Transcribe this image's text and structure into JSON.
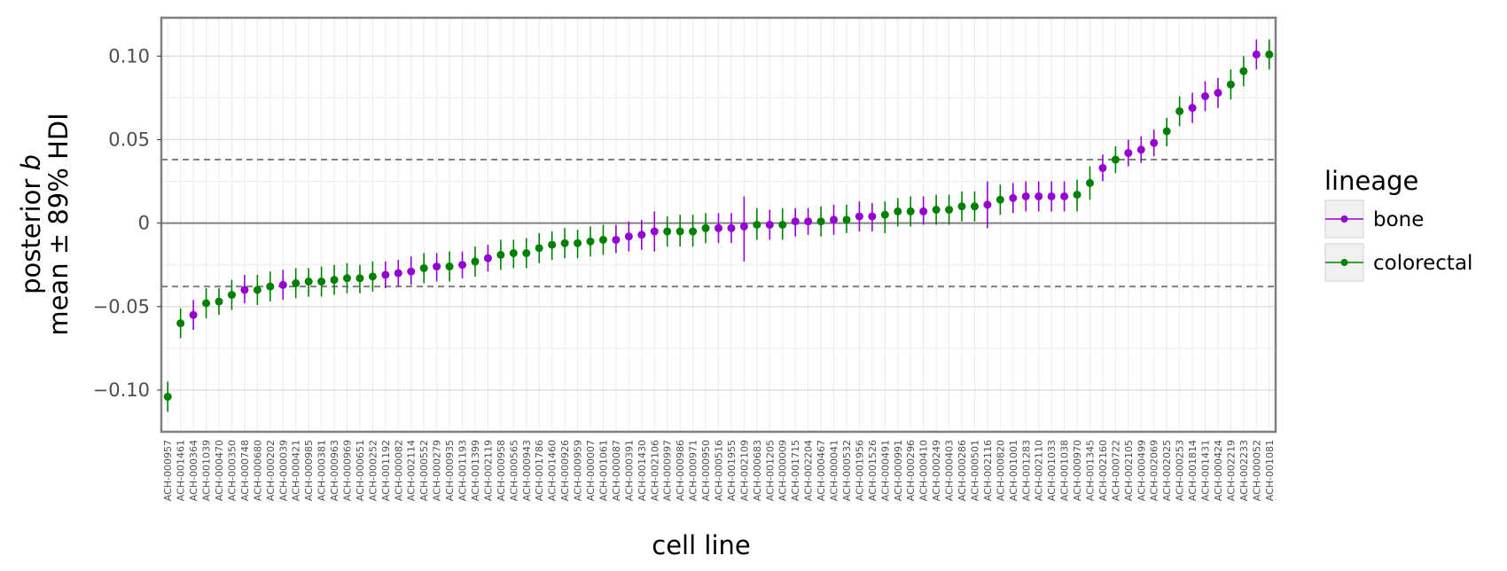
{
  "chart_data": {
    "type": "scatter",
    "title": "",
    "xlabel": "cell line",
    "ylabel_line1": "posterior",
    "ylabel_italic": "b",
    "ylabel_line2": "mean ± 89% HDI",
    "ylim": [
      -0.125,
      0.123
    ],
    "yticks": [
      -0.1,
      -0.05,
      0,
      0.05,
      0.1
    ],
    "ytick_labels": [
      "−0.10",
      "−0.05",
      "0",
      "0.05",
      "0.10"
    ],
    "zero_line": 0,
    "dashed_lines": [
      0.038,
      -0.038
    ],
    "grid": true,
    "legend": {
      "title": "lineage",
      "placement": "right",
      "entries": [
        {
          "name": "bone",
          "color": "#9400d3"
        },
        {
          "name": "colorectal",
          "color": "#008000"
        }
      ]
    },
    "colors": {
      "bone": "#9400d3",
      "colorectal": "#008000"
    },
    "points": [
      {
        "x": "ACH-000957",
        "lineage": "colorectal",
        "y": -0.104,
        "lo": -0.113,
        "hi": -0.095
      },
      {
        "x": "ACH-001461",
        "lineage": "colorectal",
        "y": -0.06,
        "lo": -0.069,
        "hi": -0.051
      },
      {
        "x": "ACH-000364",
        "lineage": "bone",
        "y": -0.055,
        "lo": -0.064,
        "hi": -0.046
      },
      {
        "x": "ACH-001039",
        "lineage": "colorectal",
        "y": -0.048,
        "lo": -0.057,
        "hi": -0.039
      },
      {
        "x": "ACH-000470",
        "lineage": "colorectal",
        "y": -0.047,
        "lo": -0.055,
        "hi": -0.039
      },
      {
        "x": "ACH-000350",
        "lineage": "colorectal",
        "y": -0.043,
        "lo": -0.052,
        "hi": -0.034
      },
      {
        "x": "ACH-000748",
        "lineage": "bone",
        "y": -0.04,
        "lo": -0.048,
        "hi": -0.031
      },
      {
        "x": "ACH-000680",
        "lineage": "colorectal",
        "y": -0.04,
        "lo": -0.049,
        "hi": -0.031
      },
      {
        "x": "ACH-000202",
        "lineage": "colorectal",
        "y": -0.038,
        "lo": -0.047,
        "hi": -0.029
      },
      {
        "x": "ACH-000039",
        "lineage": "bone",
        "y": -0.037,
        "lo": -0.046,
        "hi": -0.028
      },
      {
        "x": "ACH-000421",
        "lineage": "colorectal",
        "y": -0.036,
        "lo": -0.045,
        "hi": -0.027
      },
      {
        "x": "ACH-000985",
        "lineage": "colorectal",
        "y": -0.035,
        "lo": -0.044,
        "hi": -0.027
      },
      {
        "x": "ACH-000381",
        "lineage": "colorectal",
        "y": -0.035,
        "lo": -0.044,
        "hi": -0.026
      },
      {
        "x": "ACH-000963",
        "lineage": "colorectal",
        "y": -0.034,
        "lo": -0.043,
        "hi": -0.025
      },
      {
        "x": "ACH-000969",
        "lineage": "colorectal",
        "y": -0.033,
        "lo": -0.042,
        "hi": -0.024
      },
      {
        "x": "ACH-000651",
        "lineage": "colorectal",
        "y": -0.033,
        "lo": -0.042,
        "hi": -0.025
      },
      {
        "x": "ACH-000252",
        "lineage": "colorectal",
        "y": -0.032,
        "lo": -0.041,
        "hi": -0.023
      },
      {
        "x": "ACH-001192",
        "lineage": "bone",
        "y": -0.031,
        "lo": -0.039,
        "hi": -0.023
      },
      {
        "x": "ACH-000082",
        "lineage": "bone",
        "y": -0.03,
        "lo": -0.038,
        "hi": -0.022
      },
      {
        "x": "ACH-002114",
        "lineage": "bone",
        "y": -0.029,
        "lo": -0.037,
        "hi": -0.02
      },
      {
        "x": "ACH-000552",
        "lineage": "colorectal",
        "y": -0.027,
        "lo": -0.036,
        "hi": -0.018
      },
      {
        "x": "ACH-000279",
        "lineage": "bone",
        "y": -0.026,
        "lo": -0.035,
        "hi": -0.018
      },
      {
        "x": "ACH-000935",
        "lineage": "colorectal",
        "y": -0.026,
        "lo": -0.035,
        "hi": -0.017
      },
      {
        "x": "ACH-001193",
        "lineage": "bone",
        "y": -0.025,
        "lo": -0.033,
        "hi": -0.017
      },
      {
        "x": "ACH-001399",
        "lineage": "colorectal",
        "y": -0.023,
        "lo": -0.032,
        "hi": -0.014
      },
      {
        "x": "ACH-002119",
        "lineage": "bone",
        "y": -0.021,
        "lo": -0.029,
        "hi": -0.013
      },
      {
        "x": "ACH-000958",
        "lineage": "colorectal",
        "y": -0.019,
        "lo": -0.028,
        "hi": -0.01
      },
      {
        "x": "ACH-000565",
        "lineage": "colorectal",
        "y": -0.018,
        "lo": -0.027,
        "hi": -0.01
      },
      {
        "x": "ACH-000943",
        "lineage": "colorectal",
        "y": -0.018,
        "lo": -0.027,
        "hi": -0.009
      },
      {
        "x": "ACH-001786",
        "lineage": "colorectal",
        "y": -0.015,
        "lo": -0.024,
        "hi": -0.006
      },
      {
        "x": "ACH-001460",
        "lineage": "colorectal",
        "y": -0.013,
        "lo": -0.022,
        "hi": -0.005
      },
      {
        "x": "ACH-000926",
        "lineage": "colorectal",
        "y": -0.012,
        "lo": -0.021,
        "hi": -0.003
      },
      {
        "x": "ACH-000959",
        "lineage": "colorectal",
        "y": -0.012,
        "lo": -0.021,
        "hi": -0.004
      },
      {
        "x": "ACH-000007",
        "lineage": "colorectal",
        "y": -0.011,
        "lo": -0.02,
        "hi": -0.002
      },
      {
        "x": "ACH-001061",
        "lineage": "colorectal",
        "y": -0.01,
        "lo": -0.019,
        "hi": -0.001
      },
      {
        "x": "ACH-000087",
        "lineage": "bone",
        "y": -0.01,
        "lo": -0.018,
        "hi": -0.001
      },
      {
        "x": "ACH-000391",
        "lineage": "bone",
        "y": -0.008,
        "lo": -0.017,
        "hi": 0.001
      },
      {
        "x": "ACH-001430",
        "lineage": "bone",
        "y": -0.007,
        "lo": -0.016,
        "hi": 0.002
      },
      {
        "x": "ACH-002106",
        "lineage": "bone",
        "y": -0.005,
        "lo": -0.017,
        "hi": 0.007
      },
      {
        "x": "ACH-000997",
        "lineage": "colorectal",
        "y": -0.005,
        "lo": -0.014,
        "hi": 0.004
      },
      {
        "x": "ACH-000986",
        "lineage": "colorectal",
        "y": -0.005,
        "lo": -0.014,
        "hi": 0.005
      },
      {
        "x": "ACH-000971",
        "lineage": "colorectal",
        "y": -0.005,
        "lo": -0.014,
        "hi": 0.005
      },
      {
        "x": "ACH-000950",
        "lineage": "colorectal",
        "y": -0.003,
        "lo": -0.012,
        "hi": 0.006
      },
      {
        "x": "ACH-000516",
        "lineage": "bone",
        "y": -0.003,
        "lo": -0.012,
        "hi": 0.006
      },
      {
        "x": "ACH-001955",
        "lineage": "bone",
        "y": -0.003,
        "lo": -0.012,
        "hi": 0.006
      },
      {
        "x": "ACH-002109",
        "lineage": "bone",
        "y": -0.002,
        "lo": -0.023,
        "hi": 0.016
      },
      {
        "x": "ACH-000683",
        "lineage": "colorectal",
        "y": -0.001,
        "lo": -0.01,
        "hi": 0.009
      },
      {
        "x": "ACH-001205",
        "lineage": "bone",
        "y": -0.001,
        "lo": -0.01,
        "hi": 0.008
      },
      {
        "x": "ACH-000009",
        "lineage": "colorectal",
        "y": -0.001,
        "lo": -0.01,
        "hi": 0.009
      },
      {
        "x": "ACH-001715",
        "lineage": "bone",
        "y": 0.001,
        "lo": -0.008,
        "hi": 0.009
      },
      {
        "x": "ACH-002204",
        "lineage": "bone",
        "y": 0.001,
        "lo": -0.007,
        "hi": 0.009
      },
      {
        "x": "ACH-000467",
        "lineage": "colorectal",
        "y": 0.001,
        "lo": -0.008,
        "hi": 0.01
      },
      {
        "x": "ACH-000041",
        "lineage": "bone",
        "y": 0.002,
        "lo": -0.007,
        "hi": 0.011
      },
      {
        "x": "ACH-000532",
        "lineage": "colorectal",
        "y": 0.002,
        "lo": -0.006,
        "hi": 0.011
      },
      {
        "x": "ACH-001956",
        "lineage": "bone",
        "y": 0.004,
        "lo": -0.005,
        "hi": 0.013
      },
      {
        "x": "ACH-001526",
        "lineage": "bone",
        "y": 0.004,
        "lo": -0.005,
        "hi": 0.012
      },
      {
        "x": "ACH-000491",
        "lineage": "colorectal",
        "y": 0.005,
        "lo": -0.006,
        "hi": 0.013
      },
      {
        "x": "ACH-000991",
        "lineage": "colorectal",
        "y": 0.007,
        "lo": -0.002,
        "hi": 0.015
      },
      {
        "x": "ACH-000296",
        "lineage": "colorectal",
        "y": 0.007,
        "lo": -0.002,
        "hi": 0.016
      },
      {
        "x": "ACH-000410",
        "lineage": "bone",
        "y": 0.007,
        "lo": -0.001,
        "hi": 0.016
      },
      {
        "x": "ACH-000249",
        "lineage": "colorectal",
        "y": 0.008,
        "lo": -0.001,
        "hi": 0.017
      },
      {
        "x": "ACH-000403",
        "lineage": "colorectal",
        "y": 0.008,
        "lo": -0.001,
        "hi": 0.017
      },
      {
        "x": "ACH-000286",
        "lineage": "colorectal",
        "y": 0.01,
        "lo": 0.001,
        "hi": 0.019
      },
      {
        "x": "ACH-000501",
        "lineage": "colorectal",
        "y": 0.01,
        "lo": 0.001,
        "hi": 0.019
      },
      {
        "x": "ACH-002116",
        "lineage": "bone",
        "y": 0.011,
        "lo": -0.003,
        "hi": 0.025
      },
      {
        "x": "ACH-000820",
        "lineage": "colorectal",
        "y": 0.014,
        "lo": 0.005,
        "hi": 0.023
      },
      {
        "x": "ACH-001001",
        "lineage": "bone",
        "y": 0.015,
        "lo": 0.006,
        "hi": 0.024
      },
      {
        "x": "ACH-001283",
        "lineage": "bone",
        "y": 0.016,
        "lo": 0.007,
        "hi": 0.025
      },
      {
        "x": "ACH-002110",
        "lineage": "bone",
        "y": 0.016,
        "lo": 0.007,
        "hi": 0.025
      },
      {
        "x": "ACH-001033",
        "lineage": "bone",
        "y": 0.016,
        "lo": 0.007,
        "hi": 0.025
      },
      {
        "x": "ACH-001038",
        "lineage": "bone",
        "y": 0.016,
        "lo": 0.007,
        "hi": 0.025
      },
      {
        "x": "ACH-000970",
        "lineage": "colorectal",
        "y": 0.017,
        "lo": 0.007,
        "hi": 0.026
      },
      {
        "x": "ACH-001345",
        "lineage": "colorectal",
        "y": 0.024,
        "lo": 0.014,
        "hi": 0.034
      },
      {
        "x": "ACH-002160",
        "lineage": "bone",
        "y": 0.033,
        "lo": 0.025,
        "hi": 0.041
      },
      {
        "x": "ACH-000722",
        "lineage": "colorectal",
        "y": 0.038,
        "lo": 0.03,
        "hi": 0.046
      },
      {
        "x": "ACH-002105",
        "lineage": "bone",
        "y": 0.042,
        "lo": 0.034,
        "hi": 0.05
      },
      {
        "x": "ACH-000499",
        "lineage": "bone",
        "y": 0.044,
        "lo": 0.036,
        "hi": 0.052
      },
      {
        "x": "ACH-002069",
        "lineage": "bone",
        "y": 0.048,
        "lo": 0.04,
        "hi": 0.056
      },
      {
        "x": "ACH-002025",
        "lineage": "colorectal",
        "y": 0.055,
        "lo": 0.046,
        "hi": 0.063
      },
      {
        "x": "ACH-000253",
        "lineage": "colorectal",
        "y": 0.067,
        "lo": 0.058,
        "hi": 0.076
      },
      {
        "x": "ACH-001814",
        "lineage": "bone",
        "y": 0.069,
        "lo": 0.06,
        "hi": 0.078
      },
      {
        "x": "ACH-001431",
        "lineage": "bone",
        "y": 0.076,
        "lo": 0.067,
        "hi": 0.085
      },
      {
        "x": "ACH-000424",
        "lineage": "bone",
        "y": 0.078,
        "lo": 0.069,
        "hi": 0.087
      },
      {
        "x": "ACH-002219",
        "lineage": "colorectal",
        "y": 0.083,
        "lo": 0.074,
        "hi": 0.092
      },
      {
        "x": "ACH-002233",
        "lineage": "colorectal",
        "y": 0.091,
        "lo": 0.082,
        "hi": 0.1
      },
      {
        "x": "ACH-000052",
        "lineage": "bone",
        "y": 0.101,
        "lo": 0.092,
        "hi": 0.11
      },
      {
        "x": "ACH-001081",
        "lineage": "colorectal",
        "y": 0.101,
        "lo": 0.092,
        "hi": 0.11
      }
    ]
  }
}
